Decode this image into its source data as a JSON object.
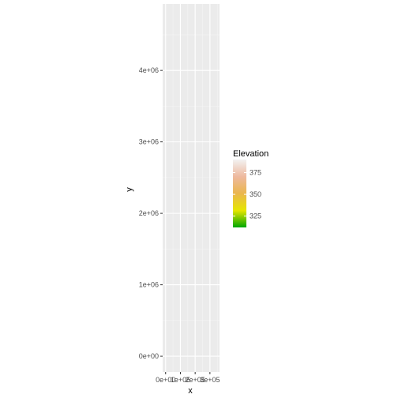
{
  "chart_data": {
    "type": "heatmap",
    "xlabel": "x",
    "ylabel": "y",
    "x_ticks": [
      {
        "value": 0,
        "label": "0e+00"
      },
      {
        "value": 100000,
        "label": "1e+05"
      },
      {
        "value": 200000,
        "label": "2e+05"
      },
      {
        "value": 300000,
        "label": "3e+05"
      }
    ],
    "y_ticks": [
      {
        "value": 0,
        "label": "0e+00"
      },
      {
        "value": 1000000,
        "label": "1e+06"
      },
      {
        "value": 2000000,
        "label": "2e+06"
      },
      {
        "value": 3000000,
        "label": "3e+06"
      },
      {
        "value": 4000000,
        "label": "4e+06"
      }
    ],
    "xlim": [
      -20000,
      365000
    ],
    "ylim": [
      -220000,
      4930000
    ],
    "grid": true,
    "panel_background": "#EBEBEB",
    "legend": {
      "title": "Elevation",
      "position": "right",
      "range": [
        312,
        390
      ],
      "breaks": [
        {
          "value": 325,
          "label": "325"
        },
        {
          "value": 350,
          "label": "350"
        },
        {
          "value": 375,
          "label": "375"
        }
      ],
      "colors": [
        "#00A600",
        "#E6E600",
        "#EAB64E",
        "#EEB99F",
        "#F2F2F2"
      ]
    }
  }
}
